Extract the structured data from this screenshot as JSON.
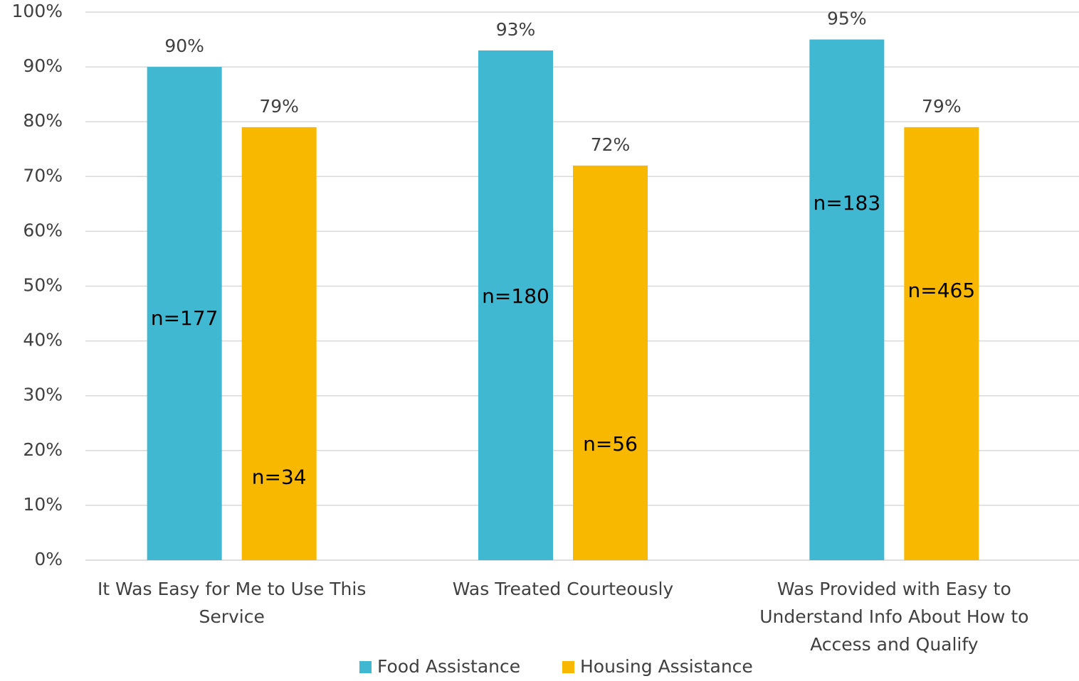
{
  "chart_data": {
    "type": "bar",
    "categories": [
      "It Was Easy for Me to Use This Service",
      "Was Treated Courteously",
      "Was Provided with Easy to Understand Info About How to Access and Qualify"
    ],
    "series": [
      {
        "name": "Food Assistance",
        "color": "#40b8d2",
        "values": [
          90,
          93,
          95
        ],
        "value_labels": [
          "90%",
          "93%",
          "95%"
        ],
        "annotations": [
          "n=177",
          "n=180",
          "n=183"
        ]
      },
      {
        "name": "Housing Assistance",
        "color": "#f9b800",
        "values": [
          79,
          72,
          79
        ],
        "value_labels": [
          "79%",
          "72%",
          "79%"
        ],
        "annotations": [
          "n=34",
          "n=56",
          "n=465"
        ]
      }
    ],
    "ylim": [
      0,
      100
    ],
    "yticks": [
      {
        "value": 0,
        "label": "0%"
      },
      {
        "value": 10,
        "label": "10%"
      },
      {
        "value": 20,
        "label": "20%"
      },
      {
        "value": 30,
        "label": "30%"
      },
      {
        "value": 40,
        "label": "40%"
      },
      {
        "value": 50,
        "label": "50%"
      },
      {
        "value": 60,
        "label": "60%"
      },
      {
        "value": 70,
        "label": "70%"
      },
      {
        "value": 80,
        "label": "80%"
      },
      {
        "value": 90,
        "label": "90%"
      },
      {
        "value": 100,
        "label": "100%"
      }
    ],
    "grid": true,
    "legend": "bottom"
  }
}
